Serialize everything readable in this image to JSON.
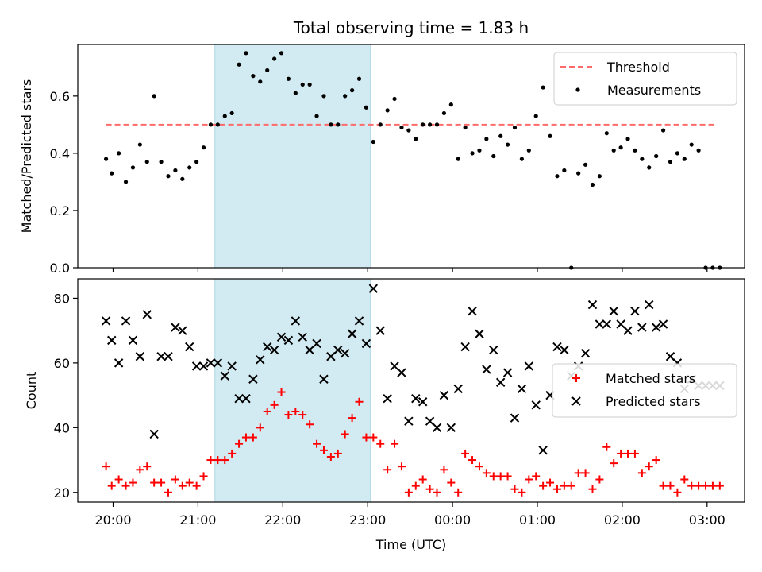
{
  "title": "Total observing time = 1.83 h",
  "chart_data": [
    {
      "type": "scatter",
      "ylabel": "Matched/Predicted stars",
      "xlabel": "",
      "ylim": [
        0,
        0.78
      ],
      "yticks": [
        0.0,
        0.2,
        0.4,
        0.6
      ],
      "ytick_labels": [
        "0.0",
        "0.2",
        "0.4",
        "0.6"
      ],
      "highlight_span": [
        "21:12",
        "23:02"
      ],
      "highlight_color": "#add8e6",
      "threshold": {
        "name": "Threshold",
        "y": 0.5,
        "x_range": [
          "19:55",
          "03:05"
        ],
        "color": "#ff6b6b",
        "style": "dashed"
      },
      "legend": {
        "placement": "upper-right",
        "entries": [
          "Threshold",
          "Measurements"
        ]
      },
      "series": [
        {
          "name": "Measurements",
          "marker": "dot",
          "color": "#000000",
          "x": [
            "19:55",
            "19:59",
            "20:04",
            "20:09",
            "20:14",
            "20:19",
            "20:24",
            "20:29",
            "20:34",
            "20:39",
            "20:44",
            "20:49",
            "20:54",
            "20:59",
            "21:04",
            "21:09",
            "21:14",
            "21:19",
            "21:24",
            "21:29",
            "21:34",
            "21:39",
            "21:44",
            "21:49",
            "21:54",
            "21:59",
            "22:04",
            "22:09",
            "22:14",
            "22:19",
            "22:24",
            "22:29",
            "22:34",
            "22:39",
            "22:44",
            "22:49",
            "22:54",
            "22:59",
            "23:04",
            "23:09",
            "23:14",
            "23:19",
            "23:24",
            "23:29",
            "23:34",
            "23:39",
            "23:44",
            "23:49",
            "23:54",
            "23:59",
            "00:04",
            "00:09",
            "00:14",
            "00:19",
            "00:24",
            "00:29",
            "00:34",
            "00:39",
            "00:44",
            "00:49",
            "00:54",
            "00:59",
            "01:04",
            "01:09",
            "01:14",
            "01:19",
            "01:24",
            "01:29",
            "01:34",
            "01:39",
            "01:44",
            "01:49",
            "01:54",
            "01:59",
            "02:04",
            "02:09",
            "02:14",
            "02:19",
            "02:24",
            "02:29",
            "02:34",
            "02:39",
            "02:44",
            "02:49",
            "02:54",
            "02:59",
            "03:04",
            "03:09"
          ],
          "y": [
            0.38,
            0.33,
            0.4,
            0.3,
            0.35,
            0.43,
            0.37,
            0.6,
            0.37,
            0.32,
            0.34,
            0.31,
            0.35,
            0.37,
            0.42,
            0.5,
            0.5,
            0.53,
            0.54,
            0.71,
            0.75,
            0.67,
            0.65,
            0.69,
            0.73,
            0.75,
            0.66,
            0.61,
            0.64,
            0.64,
            0.53,
            0.6,
            0.5,
            0.5,
            0.6,
            0.62,
            0.66,
            0.56,
            0.44,
            0.5,
            0.55,
            0.59,
            0.49,
            0.48,
            0.45,
            0.5,
            0.5,
            0.5,
            0.54,
            0.57,
            0.38,
            0.49,
            0.4,
            0.41,
            0.45,
            0.39,
            0.46,
            0.43,
            0.49,
            0.38,
            0.41,
            0.53,
            0.63,
            0.46,
            0.32,
            0.34,
            0.0,
            0.33,
            0.36,
            0.29,
            0.32,
            0.47,
            0.41,
            0.42,
            0.45,
            0.41,
            0.38,
            0.35,
            0.39,
            0.48,
            0.37,
            0.4,
            0.38,
            0.43,
            0.41,
            0.0,
            0.0,
            0.0
          ]
        }
      ]
    },
    {
      "type": "scatter",
      "ylabel": "Count",
      "xlabel": "Time (UTC)",
      "ylim": [
        17,
        86
      ],
      "yticks": [
        20,
        40,
        60,
        80
      ],
      "ytick_labels": [
        "20",
        "40",
        "60",
        "80"
      ],
      "xtick_labels": [
        "20:00",
        "21:00",
        "22:00",
        "23:00",
        "00:00",
        "01:00",
        "02:00",
        "03:00"
      ],
      "highlight_span": [
        "21:12",
        "23:02"
      ],
      "highlight_color": "#add8e6",
      "legend": {
        "placement": "center-right",
        "entries": [
          "Matched stars",
          "Predicted stars"
        ]
      },
      "series": [
        {
          "name": "Matched stars",
          "marker": "plus",
          "color": "#ff0000",
          "x": [
            "19:55",
            "19:59",
            "20:04",
            "20:09",
            "20:14",
            "20:19",
            "20:24",
            "20:29",
            "20:34",
            "20:39",
            "20:44",
            "20:49",
            "20:54",
            "20:59",
            "21:04",
            "21:09",
            "21:14",
            "21:19",
            "21:24",
            "21:29",
            "21:34",
            "21:39",
            "21:44",
            "21:49",
            "21:54",
            "21:59",
            "22:04",
            "22:09",
            "22:14",
            "22:19",
            "22:24",
            "22:29",
            "22:34",
            "22:39",
            "22:44",
            "22:49",
            "22:54",
            "22:59",
            "23:04",
            "23:09",
            "23:14",
            "23:19",
            "23:24",
            "23:29",
            "23:34",
            "23:39",
            "23:44",
            "23:49",
            "23:54",
            "23:59",
            "00:04",
            "00:09",
            "00:14",
            "00:19",
            "00:24",
            "00:29",
            "00:34",
            "00:39",
            "00:44",
            "00:49",
            "00:54",
            "00:59",
            "01:04",
            "01:09",
            "01:14",
            "01:19",
            "01:24",
            "01:29",
            "01:34",
            "01:39",
            "01:44",
            "01:49",
            "01:54",
            "01:59",
            "02:04",
            "02:09",
            "02:14",
            "02:19",
            "02:24",
            "02:29",
            "02:34",
            "02:39",
            "02:44",
            "02:49",
            "02:54",
            "02:59",
            "03:04",
            "03:09"
          ],
          "y": [
            28,
            22,
            24,
            22,
            23,
            27,
            28,
            23,
            23,
            20,
            24,
            22,
            23,
            22,
            25,
            30,
            30,
            30,
            32,
            35,
            37,
            37,
            40,
            45,
            47,
            51,
            44,
            45,
            44,
            41,
            35,
            33,
            31,
            32,
            38,
            43,
            48,
            37,
            37,
            35,
            27,
            35,
            28,
            20,
            22,
            24,
            21,
            20,
            27,
            23,
            20,
            32,
            30,
            28,
            26,
            25,
            25,
            25,
            21,
            20,
            24,
            25,
            22,
            23,
            21,
            22,
            22,
            26,
            26,
            21,
            24,
            34,
            29,
            32,
            32,
            32,
            26,
            28,
            30,
            22,
            22,
            20,
            24,
            22,
            22,
            22,
            22,
            22
          ]
        },
        {
          "name": "Predicted stars",
          "marker": "x",
          "color": "#000000",
          "x": [
            "19:55",
            "19:59",
            "20:04",
            "20:09",
            "20:14",
            "20:19",
            "20:24",
            "20:29",
            "20:34",
            "20:39",
            "20:44",
            "20:49",
            "20:54",
            "20:59",
            "21:04",
            "21:09",
            "21:14",
            "21:19",
            "21:24",
            "21:29",
            "21:34",
            "21:39",
            "21:44",
            "21:49",
            "21:54",
            "21:59",
            "22:04",
            "22:09",
            "22:14",
            "22:19",
            "22:24",
            "22:29",
            "22:34",
            "22:39",
            "22:44",
            "22:49",
            "22:54",
            "22:59",
            "23:04",
            "23:09",
            "23:14",
            "23:19",
            "23:24",
            "23:29",
            "23:34",
            "23:39",
            "23:44",
            "23:49",
            "23:54",
            "23:59",
            "00:04",
            "00:09",
            "00:14",
            "00:19",
            "00:24",
            "00:29",
            "00:34",
            "00:39",
            "00:44",
            "00:49",
            "00:54",
            "00:59",
            "01:04",
            "01:09",
            "01:14",
            "01:19",
            "01:24",
            "01:29",
            "01:34",
            "01:39",
            "01:44",
            "01:49",
            "01:54",
            "01:59",
            "02:04",
            "02:09",
            "02:14",
            "02:19",
            "02:24",
            "02:29",
            "02:34",
            "02:39",
            "02:44",
            "02:49",
            "02:54",
            "02:59",
            "03:04",
            "03:09"
          ],
          "y": [
            73,
            67,
            60,
            73,
            67,
            62,
            75,
            38,
            62,
            62,
            71,
            70,
            65,
            59,
            59,
            60,
            60,
            56,
            59,
            49,
            49,
            55,
            61,
            65,
            64,
            68,
            67,
            73,
            68,
            64,
            66,
            55,
            62,
            64,
            63,
            69,
            73,
            66,
            83,
            70,
            49,
            59,
            57,
            42,
            49,
            48,
            42,
            40,
            50,
            40,
            52,
            65,
            76,
            69,
            58,
            64,
            54,
            57,
            43,
            52,
            59,
            47,
            33,
            50,
            65,
            64,
            56,
            59,
            63,
            78,
            72,
            72,
            76,
            72,
            70,
            76,
            71,
            78,
            71,
            72,
            62,
            60,
            52,
            55,
            53,
            53,
            53,
            53
          ]
        }
      ]
    }
  ]
}
